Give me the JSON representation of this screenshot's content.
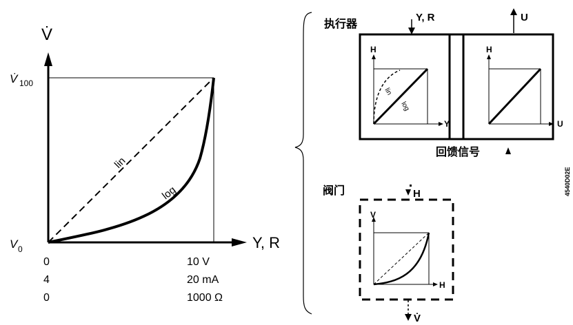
{
  "left_chart": {
    "y_axis_label": "V̇",
    "y_top_label": "V̇",
    "y_top_sub": "100",
    "y_bottom_label": "V",
    "y_bottom_sub": "0",
    "x_axis_label": "Y, R",
    "curve_lin_label": "lin",
    "curve_log_label": "log",
    "x_scale_rows": [
      {
        "start": "0",
        "end": "10 V"
      },
      {
        "start": "4",
        "end": "20 mA"
      },
      {
        "start": "0",
        "end": "1000 Ω"
      }
    ]
  },
  "right_diagram": {
    "actuator_title": "执行器",
    "actuator_input": "Y, R",
    "output_label": "U",
    "feedback_title": "回馈信号",
    "valve_title": "阀门",
    "valve_input": "H",
    "valve_output": "V̇",
    "box1_y_axis": "H",
    "box1_x_axis": "Y",
    "box1_curve_lin": "lin",
    "box1_curve_log": "log",
    "box2_y_axis": "H",
    "box2_x_axis": "U",
    "box3_y_axis": "V",
    "box3_x_axis": "H",
    "doc_code": "4540D02E"
  }
}
